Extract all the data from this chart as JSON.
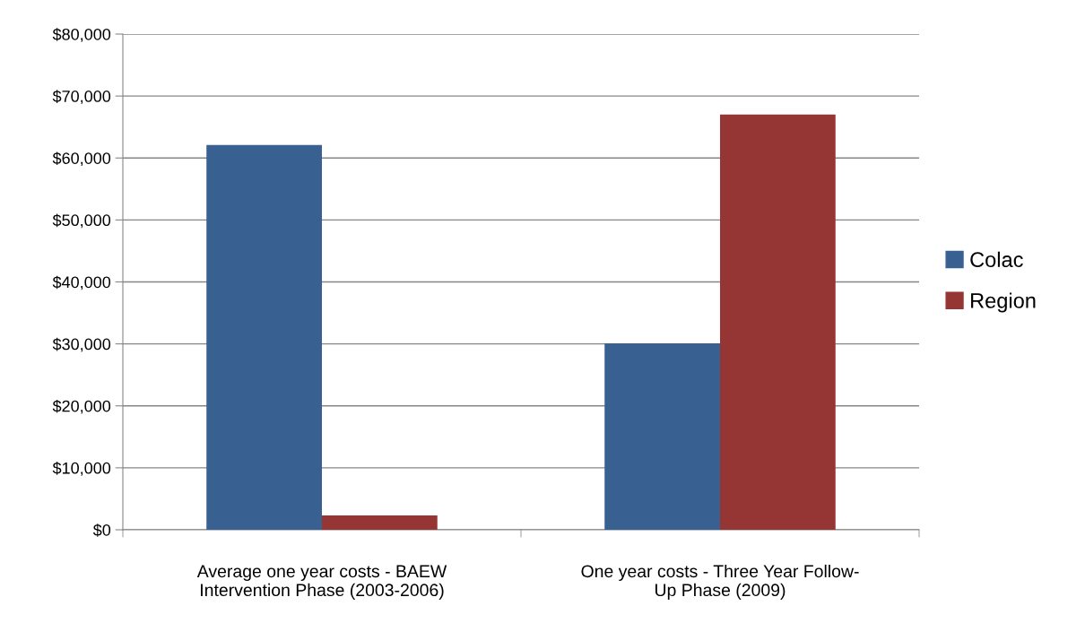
{
  "chart_data": {
    "type": "bar",
    "categories": [
      "Average one year costs - BAEW\nIntervention Phase (2003-2006)",
      "One year costs - Three Year Follow-\nUp Phase (2009)"
    ],
    "series": [
      {
        "name": "Colac",
        "color": "#386192",
        "values": [
          62100,
          30100
        ]
      },
      {
        "name": "Region",
        "color": "#963634",
        "values": [
          2300,
          67000
        ]
      }
    ],
    "ylim": [
      0,
      80000
    ],
    "yticks": [
      {
        "value": 0,
        "label": "$0"
      },
      {
        "value": 10000,
        "label": "$10,000"
      },
      {
        "value": 20000,
        "label": "$20,000"
      },
      {
        "value": 30000,
        "label": "$30,000"
      },
      {
        "value": 40000,
        "label": "$40,000"
      },
      {
        "value": 50000,
        "label": "$50,000"
      },
      {
        "value": 60000,
        "label": "$60,000"
      },
      {
        "value": 70000,
        "label": "$70,000"
      },
      {
        "value": 80000,
        "label": "$80,000"
      }
    ],
    "grid": "y",
    "legend": "right"
  }
}
